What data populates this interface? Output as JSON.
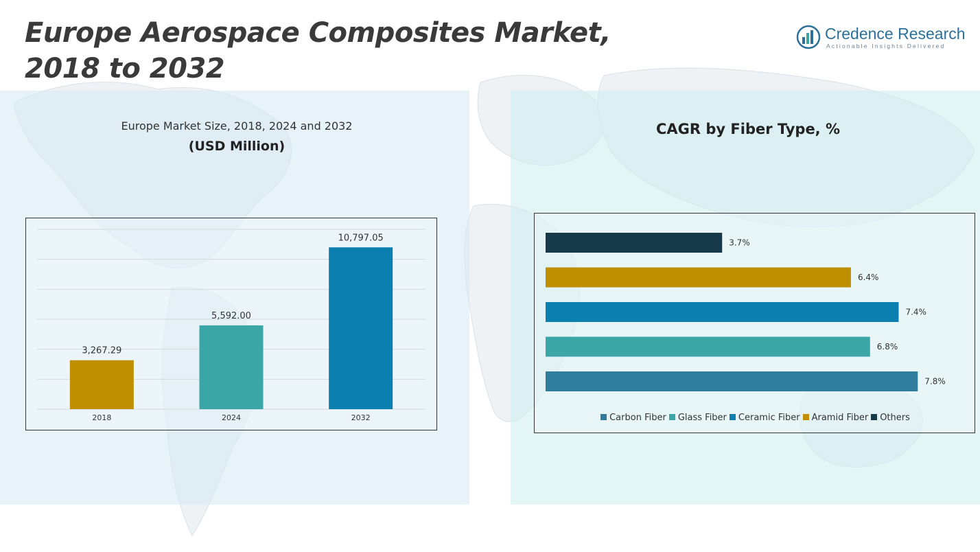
{
  "header": {
    "title_line1": "Europe Aerospace Composites Market,",
    "title_line2": "2018 to 2032"
  },
  "logo": {
    "name": "Credence Research",
    "tagline": "Actionable Insights Delivered"
  },
  "left_panel": {
    "subtitle": "Europe Market Size, 2018, 2024 and 2032",
    "unit": "(USD Million)"
  },
  "right_panel": {
    "title": "CAGR by Fiber Type, %"
  },
  "chart_data": [
    {
      "type": "bar",
      "title": "Europe Market Size, 2018, 2024 and 2032",
      "ylabel": "(USD Million)",
      "categories": [
        "2018",
        "2024",
        "2032"
      ],
      "values": [
        3267.29,
        5592.0,
        10797.05
      ],
      "value_labels": [
        "3,267.29",
        "5,592.00",
        "10,797.05"
      ],
      "colors": [
        "#bf8f00",
        "#3aa6a6",
        "#0a7fb0"
      ],
      "ylim": [
        0,
        12000
      ],
      "grid": true
    },
    {
      "type": "bar",
      "orientation": "horizontal",
      "title": "CAGR by Fiber Type, %",
      "categories": [
        "Carbon Fiber",
        "Glass Fiber",
        "Ceramic Fiber",
        "Aramid Fiber",
        "Others"
      ],
      "values": [
        7.8,
        6.8,
        7.4,
        6.4,
        3.7
      ],
      "value_labels": [
        "7.8%",
        "6.8%",
        "7.4%",
        "6.4%",
        "3.7%"
      ],
      "colors": [
        "#307c9c",
        "#3aa6a6",
        "#0a7fb0",
        "#bf8f00",
        "#173a4a"
      ],
      "xlim": [
        0,
        8.4
      ],
      "legend": "bottom"
    }
  ]
}
